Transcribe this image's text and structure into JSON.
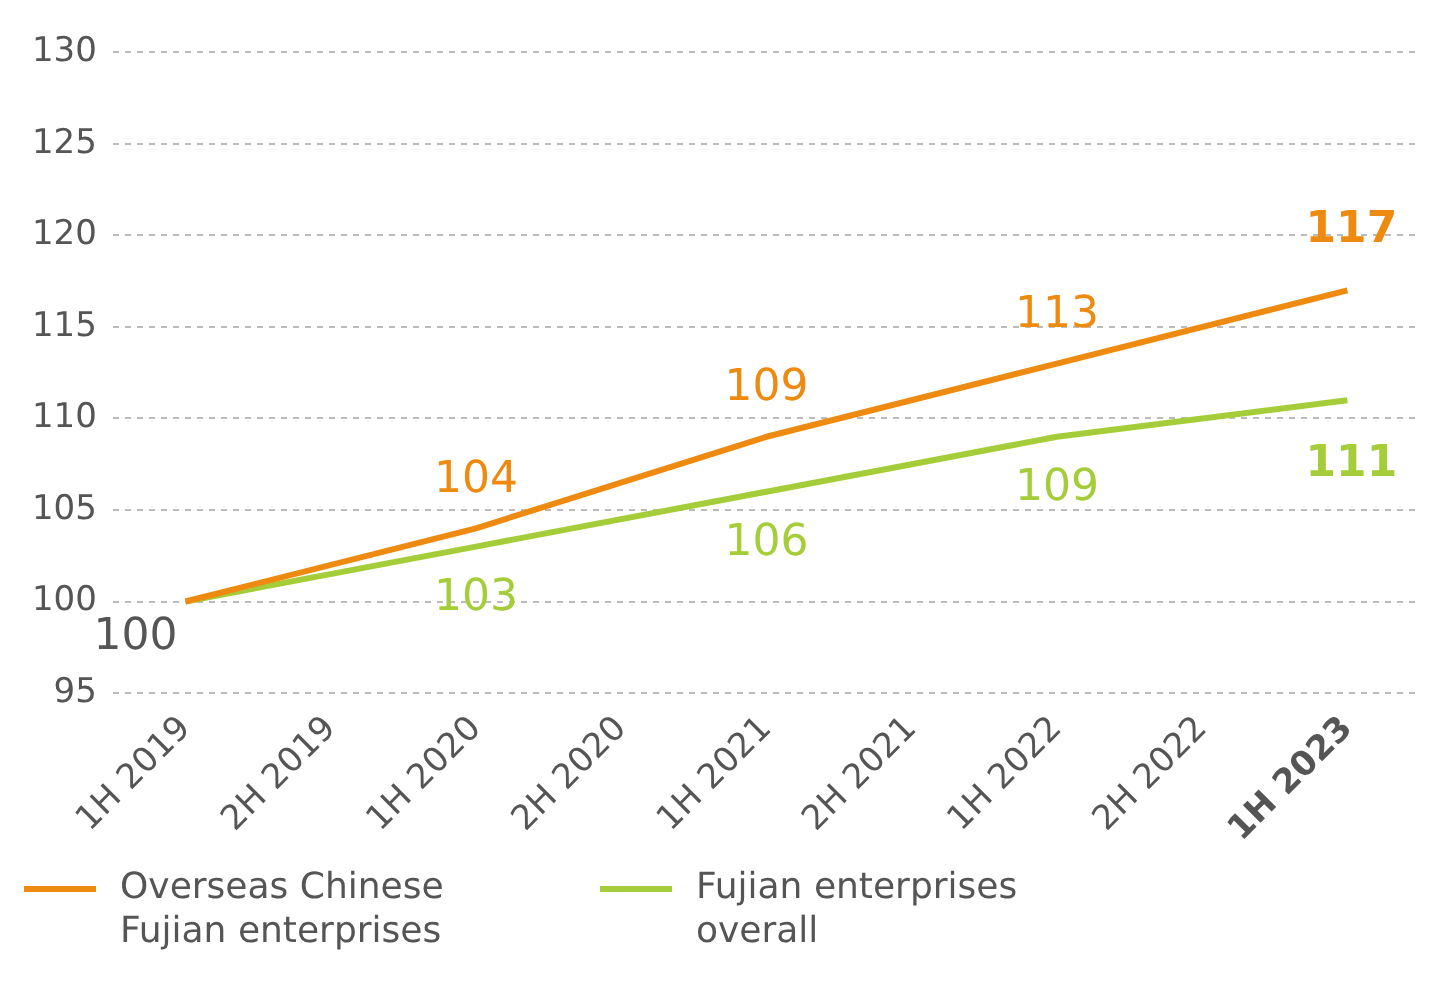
{
  "chart_data": {
    "type": "line",
    "categories": [
      "1H 2019",
      "2H 2019",
      "1H 2020",
      "2H 2020",
      "1H 2021",
      "2H 2021",
      "1H 2022",
      "2H 2022",
      "1H 2023"
    ],
    "series": [
      {
        "name": "Overseas Chinese Fujian enterprises",
        "color": "#ee8a10",
        "values": [
          100,
          null,
          104,
          null,
          109,
          null,
          113,
          null,
          117
        ],
        "value_labels": [
          null,
          null,
          "104",
          null,
          "109",
          null,
          "113",
          null,
          "117"
        ]
      },
      {
        "name": "Fujian enterprises overall",
        "color": "#a5cd39",
        "values": [
          100,
          null,
          103,
          null,
          106,
          null,
          109,
          null,
          111
        ],
        "value_labels": [
          null,
          null,
          "103",
          null,
          "106",
          null,
          "109",
          null,
          "111"
        ]
      }
    ],
    "annotations": [
      {
        "text": "100",
        "x": "1H 2019",
        "y": 100
      }
    ],
    "ylim": [
      95,
      130
    ],
    "yticks": [
      95,
      100,
      105,
      110,
      115,
      120,
      125,
      130
    ],
    "grid": "y",
    "legend": "bottom",
    "marker": "none",
    "line_style": "solid"
  }
}
